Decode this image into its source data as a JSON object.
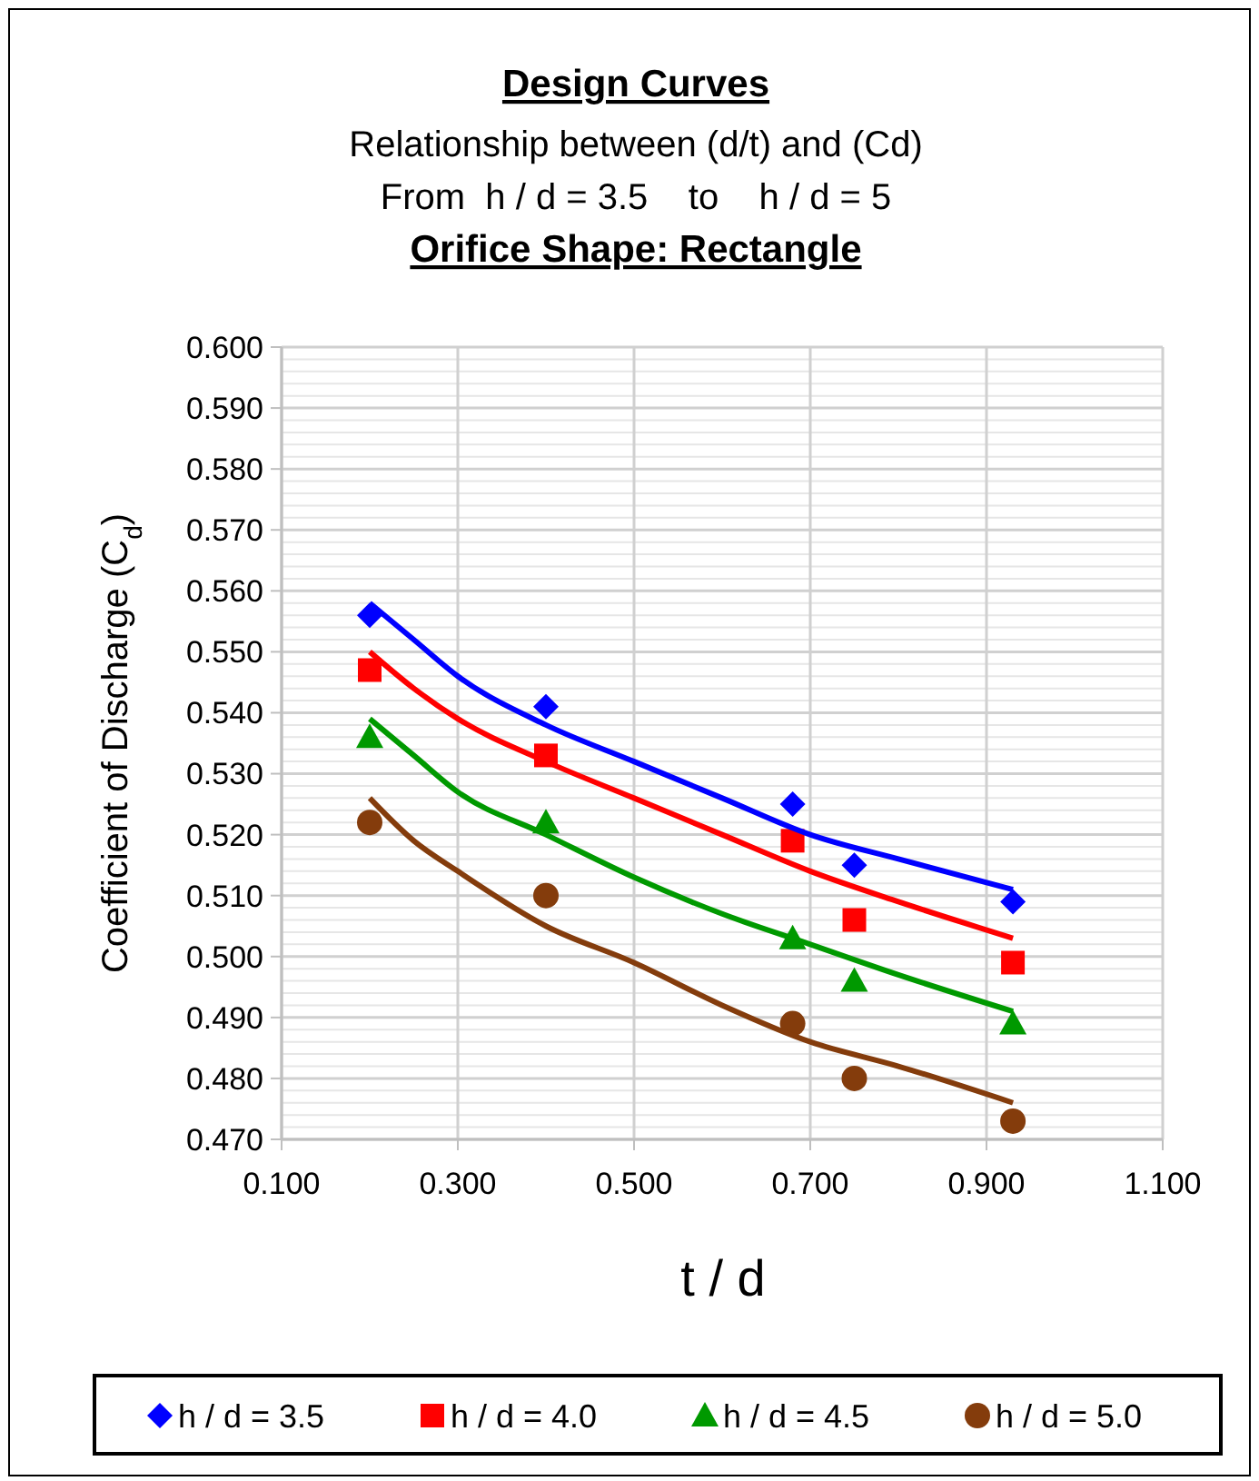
{
  "chart_data": {
    "type": "scatter",
    "title": "Design Curves",
    "subtitle": "Relationship between (d/t) and (Cd)\nFrom  h / d = 3.5    to    h / d = 5",
    "annotations": [
      "Orifice Shape: Rectangle"
    ],
    "xlabel": "t / d",
    "ylabel": "Coefficient of Discharge (C$_{d}$)",
    "x": [
      0.2,
      0.4,
      0.68,
      0.75,
      0.93
    ],
    "series": [
      {
        "name": "h / d = 3.5",
        "color": "#0000ff",
        "marker": "diamond",
        "values": [
          0.556,
          0.541,
          0.525,
          0.515,
          0.509
        ]
      },
      {
        "name": "h / d = 4.0",
        "color": "#ff0000",
        "marker": "square",
        "values": [
          0.547,
          0.533,
          0.519,
          0.506,
          0.499
        ]
      },
      {
        "name": "h / d = 4.5",
        "color": "#009900",
        "marker": "triangle",
        "values": [
          0.536,
          0.522,
          0.503,
          0.496,
          0.489
        ]
      },
      {
        "name": "h / d = 5.0",
        "color": "#843c0c",
        "marker": "circle",
        "values": [
          0.522,
          0.51,
          0.489,
          0.48,
          0.473
        ]
      },
      {
        "type": "line",
        "color": "#0000ff",
        "marker": "none",
        "x": [
          0.2,
          0.25,
          0.3,
          0.4,
          0.5,
          0.6,
          0.7,
          0.8,
          0.93
        ],
        "values": [
          0.558,
          0.552,
          0.546,
          0.538,
          0.532,
          0.526,
          0.52,
          0.516,
          0.511
        ]
      },
      {
        "type": "line",
        "color": "#ff0000",
        "marker": "none",
        "x": [
          0.2,
          0.25,
          0.3,
          0.4,
          0.5,
          0.6,
          0.7,
          0.8,
          0.93
        ],
        "values": [
          0.55,
          0.544,
          0.539,
          0.532,
          0.526,
          0.52,
          0.514,
          0.509,
          0.503
        ]
      },
      {
        "type": "line",
        "color": "#009900",
        "marker": "none",
        "x": [
          0.2,
          0.25,
          0.3,
          0.4,
          0.5,
          0.6,
          0.7,
          0.8,
          0.93
        ],
        "values": [
          0.539,
          0.533,
          0.527,
          0.52,
          0.513,
          0.507,
          0.502,
          0.497,
          0.491
        ]
      },
      {
        "type": "line",
        "color": "#843c0c",
        "marker": "none",
        "x": [
          0.2,
          0.25,
          0.3,
          0.4,
          0.5,
          0.6,
          0.7,
          0.8,
          0.93
        ],
        "values": [
          0.526,
          0.519,
          0.514,
          0.505,
          0.499,
          0.492,
          0.486,
          0.482,
          0.476
        ]
      }
    ],
    "xlim": [
      0.1,
      1.1
    ],
    "xticks": [
      {
        "value": 0.1,
        "label": "0.100"
      },
      {
        "value": 0.3,
        "label": "0.300"
      },
      {
        "value": 0.5,
        "label": "0.500"
      },
      {
        "value": 0.7,
        "label": "0.700"
      },
      {
        "value": 0.9,
        "label": "0.900"
      },
      {
        "value": 1.1,
        "label": "1.100"
      }
    ],
    "ylim": [
      0.47,
      0.6
    ],
    "yticks": [
      {
        "value": 0.47,
        "label": "0.470"
      },
      {
        "value": 0.48,
        "label": "0.480"
      },
      {
        "value": 0.49,
        "label": "0.490"
      },
      {
        "value": 0.5,
        "label": "0.500"
      },
      {
        "value": 0.51,
        "label": "0.510"
      },
      {
        "value": 0.52,
        "label": "0.520"
      },
      {
        "value": 0.53,
        "label": "0.530"
      },
      {
        "value": 0.54,
        "label": "0.540"
      },
      {
        "value": 0.55,
        "label": "0.550"
      },
      {
        "value": 0.56,
        "label": "0.560"
      },
      {
        "value": 0.57,
        "label": "0.570"
      },
      {
        "value": 0.58,
        "label": "0.580"
      },
      {
        "value": 0.59,
        "label": "0.590"
      },
      {
        "value": 0.6,
        "label": "0.600"
      }
    ],
    "grid": true,
    "legend": "bottom"
  }
}
